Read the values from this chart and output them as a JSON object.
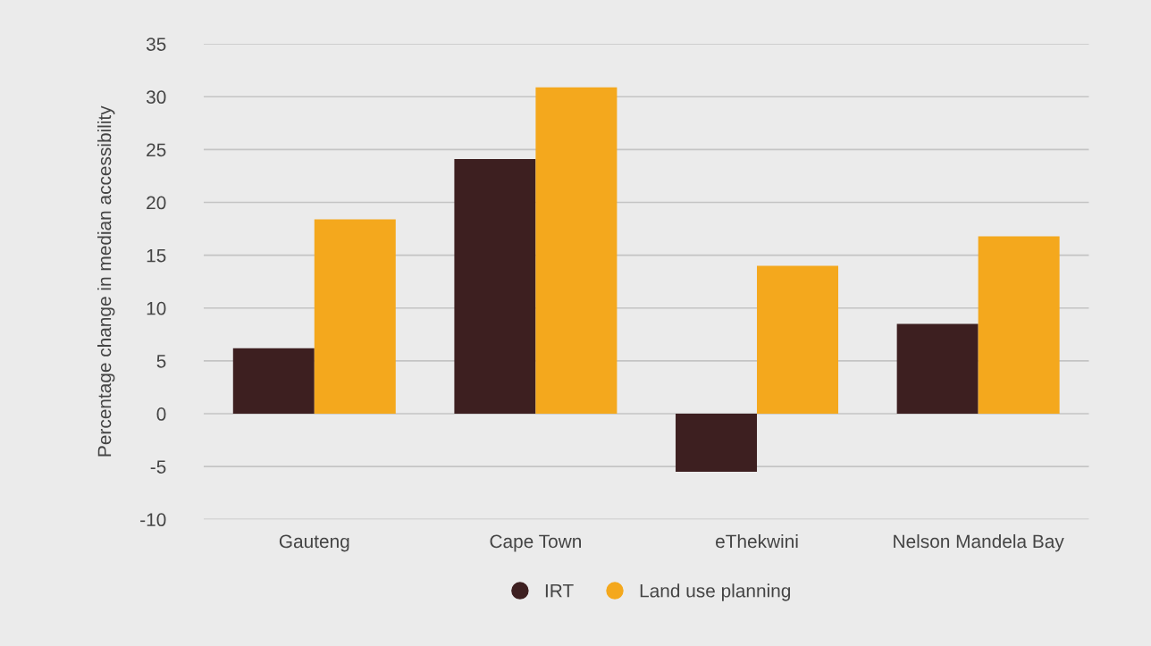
{
  "chart_data": {
    "type": "bar",
    "ylabel": "Percentage change in median accessibility",
    "categories": [
      "Gauteng",
      "Cape Town",
      "eThekwini",
      "Nelson Mandela Bay"
    ],
    "series": [
      {
        "name": "IRT",
        "color": "#3d1f20",
        "values": [
          6.2,
          24.1,
          -5.5,
          8.5
        ]
      },
      {
        "name": "Land use planning",
        "color": "#f4a81d",
        "values": [
          18.4,
          30.9,
          14.0,
          16.8
        ]
      }
    ],
    "ylim": [
      -10,
      35
    ],
    "yticks": [
      {
        "value": -10,
        "label": "-10"
      },
      {
        "value": -5,
        "label": "-5"
      },
      0,
      5,
      10,
      15,
      20,
      25,
      30,
      35
    ],
    "grid": "y",
    "legend": "bottom",
    "marker": "circle"
  }
}
